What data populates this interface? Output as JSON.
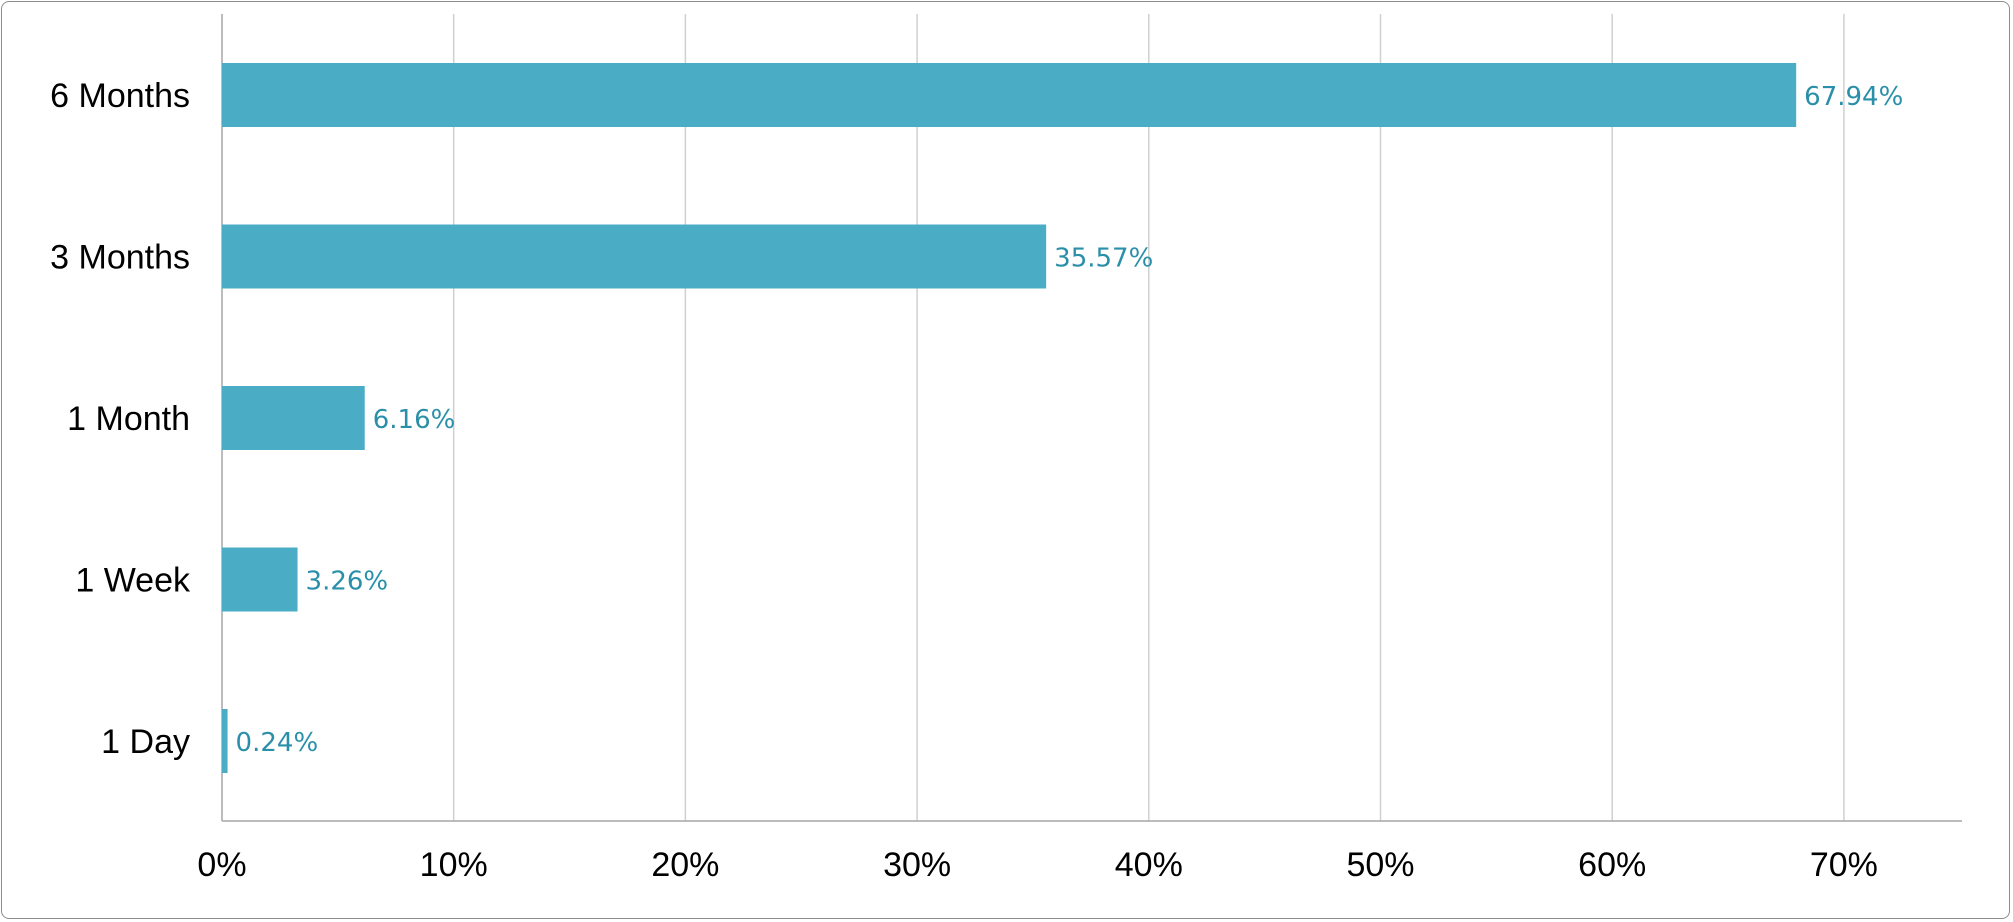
{
  "chart_data": {
    "type": "bar",
    "orientation": "horizontal",
    "categories": [
      "6 Months",
      "3 Months",
      "1 Month",
      "1 Week",
      "1 Day"
    ],
    "values": [
      67.94,
      35.57,
      6.16,
      3.26,
      0.24
    ],
    "value_labels": [
      "67.94%",
      "35.57%",
      "6.16%",
      "3.26%",
      "0.24%"
    ],
    "x_ticks": [
      0,
      10,
      20,
      30,
      40,
      50,
      60,
      70
    ],
    "x_tick_labels": [
      "0%",
      "10%",
      "20%",
      "30%",
      "40%",
      "50%",
      "60%",
      "70%"
    ],
    "xlim": [
      0,
      75
    ],
    "grid": "vertical",
    "bar_color": "#4badc5",
    "label_color": "#2a8fa8",
    "title": "",
    "xlabel": "",
    "ylabel": ""
  }
}
